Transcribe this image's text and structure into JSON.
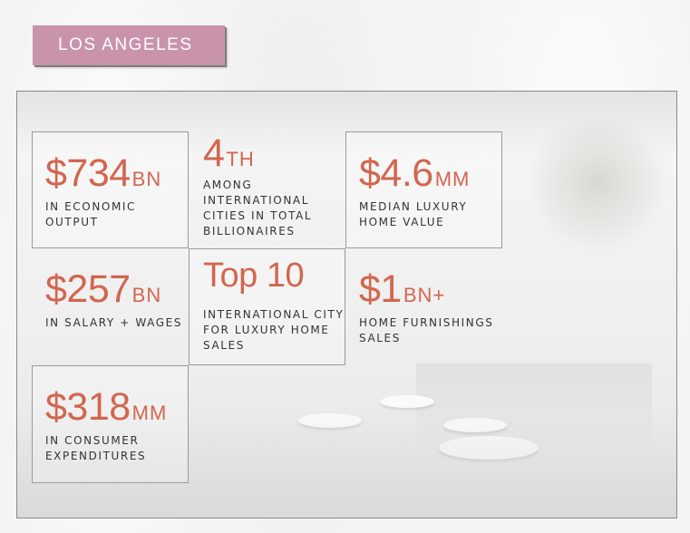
{
  "title": "LOS ANGELES",
  "accent_color": "#d2664f",
  "banner_color": "#c993ac",
  "stats": [
    {
      "value": "$734",
      "unit": "BN",
      "label": [
        "IN ECONOMIC",
        "OUTPUT"
      ]
    },
    {
      "value": "4",
      "unit": "TH",
      "label": [
        "AMONG",
        "INTERNATIONAL",
        "CITIES IN TOTAL",
        "BILLIONAIRES"
      ]
    },
    {
      "value": "$4.6",
      "unit": "MM",
      "label": [
        "MEDIAN LUXURY",
        "HOME VALUE"
      ]
    },
    {
      "value": "$257",
      "unit": "BN",
      "label": [
        "IN SALARY + WAGES"
      ]
    },
    {
      "value": "Top 10",
      "unit": "",
      "label": [
        "INTERNATIONAL CITY",
        "FOR LUXURY HOME",
        "SALES"
      ]
    },
    {
      "value": "$1",
      "unit": "BN+",
      "label": [
        "HOME FURNISHINGS",
        "SALES"
      ]
    },
    {
      "value": "$318",
      "unit": "MM",
      "label": [
        "IN CONSUMER",
        "EXPENDITURES"
      ]
    }
  ]
}
